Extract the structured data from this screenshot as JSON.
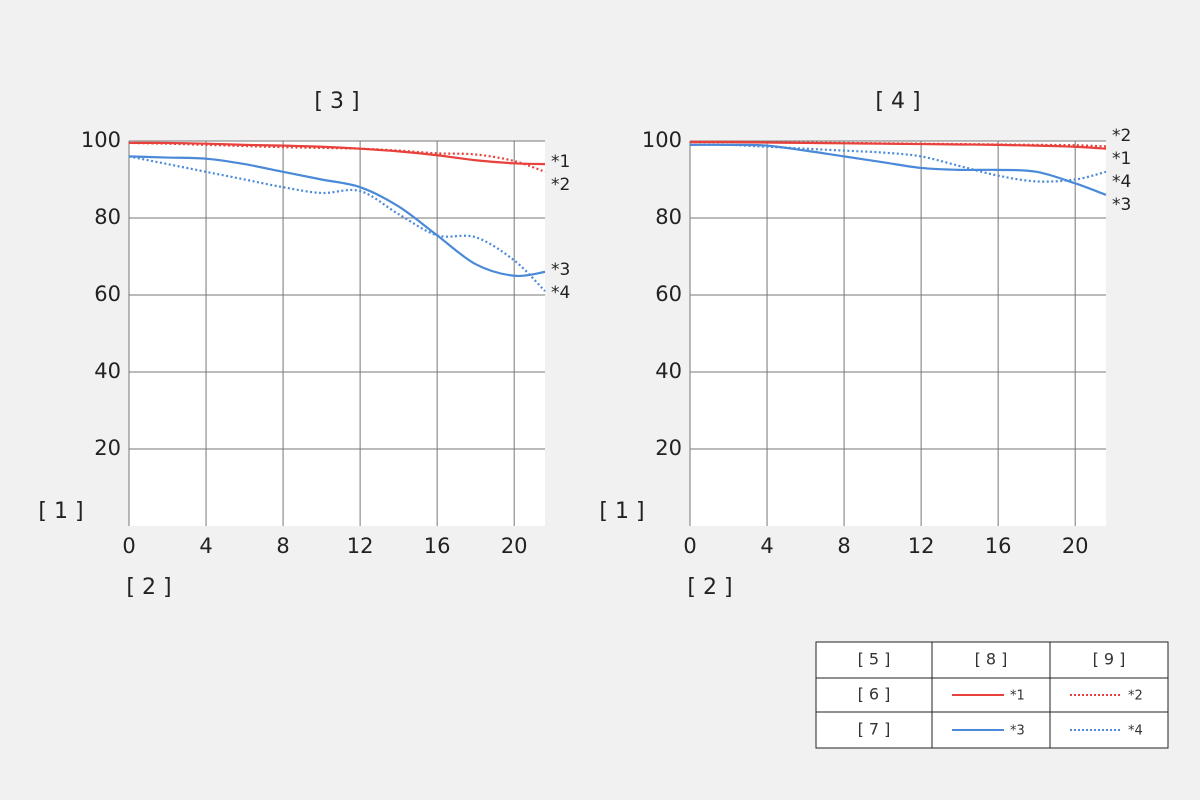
{
  "chart_data": [
    {
      "type": "line",
      "title": "[ 3 ]",
      "xlabel": "[ 2 ]",
      "ylabel": "[ 1 ]",
      "x": [
        0,
        2,
        4,
        6,
        8,
        10,
        12,
        14,
        16,
        18,
        20,
        21.6
      ],
      "xlim": [
        0,
        21.6
      ],
      "xticks": [
        0,
        4,
        8,
        12,
        16,
        20
      ],
      "ylim": [
        0,
        100
      ],
      "yticks": [
        20,
        40,
        60,
        80,
        100
      ],
      "grid": true,
      "series": [
        {
          "name": "*1",
          "color": "#e8403a",
          "style": "solid",
          "values": [
            99.5,
            99.5,
            99.3,
            99,
            98.8,
            98.5,
            98,
            97.3,
            96.3,
            95,
            94.2,
            94
          ]
        },
        {
          "name": "*2",
          "color": "#e8403a",
          "style": "dotted",
          "values": [
            99.5,
            99.3,
            99,
            98.7,
            98.4,
            98.2,
            98,
            97.5,
            96.8,
            96.5,
            94.8,
            92
          ]
        },
        {
          "name": "*3",
          "color": "#4a8ad8",
          "style": "solid",
          "values": [
            96,
            95.7,
            95.4,
            94,
            92,
            90,
            88,
            83,
            75.5,
            68,
            65,
            66
          ]
        },
        {
          "name": "*4",
          "color": "#4a8ad8",
          "style": "dotted",
          "values": [
            96,
            94,
            92,
            90,
            88,
            86.5,
            87,
            81,
            75.5,
            75,
            69,
            61
          ]
        }
      ]
    },
    {
      "type": "line",
      "title": "[ 4 ]",
      "xlabel": "[ 2 ]",
      "ylabel": "[ 1 ]",
      "x": [
        0,
        2,
        4,
        6,
        8,
        10,
        12,
        14,
        16,
        18,
        20,
        21.6
      ],
      "xlim": [
        0,
        21.6
      ],
      "xticks": [
        0,
        4,
        8,
        12,
        16,
        20
      ],
      "ylim": [
        0,
        100
      ],
      "yticks": [
        20,
        40,
        60,
        80,
        100
      ],
      "grid": true,
      "series": [
        {
          "name": "*1",
          "color": "#e8403a",
          "style": "solid",
          "values": [
            99.7,
            99.7,
            99.6,
            99.5,
            99.4,
            99.3,
            99.2,
            99.1,
            99,
            98.8,
            98.5,
            98
          ]
        },
        {
          "name": "*2",
          "color": "#e8403a",
          "style": "dotted",
          "values": [
            99.8,
            99.8,
            99.7,
            99.6,
            99.5,
            99.4,
            99.3,
            99.2,
            99.1,
            99,
            98.9,
            98.6
          ]
        },
        {
          "name": "*3",
          "color": "#4a8ad8",
          "style": "solid",
          "values": [
            99,
            99,
            98.8,
            97.5,
            96,
            94.5,
            93,
            92.5,
            92.5,
            92,
            89,
            86
          ]
        },
        {
          "name": "*4",
          "color": "#4a8ad8",
          "style": "dotted",
          "values": [
            99,
            99,
            98.5,
            98,
            97.5,
            97,
            96,
            93.5,
            91,
            89.5,
            90,
            92
          ]
        }
      ]
    }
  ],
  "legend_table": {
    "header": [
      "[ 5 ]",
      "[ 8 ]",
      "[ 9 ]"
    ],
    "rows": [
      "[ 6 ]",
      "[ 7 ]"
    ]
  }
}
